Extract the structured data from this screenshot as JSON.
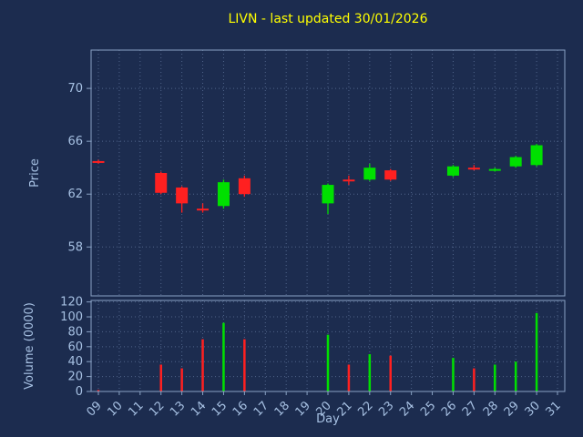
{
  "title": "LIVN - last updated 30/01/2026",
  "colors": {
    "background": "#1c2c4f",
    "title": "#ffff00",
    "axis_text": "#a6c0e2",
    "grid": "#50648a",
    "spine": "#8aa2c4",
    "up": "#00e000",
    "down": "#ff2020"
  },
  "chart_data": [
    {
      "type": "candlestick",
      "title": "LIVN - last updated 30/01/2026",
      "ylabel": "Price",
      "xlabel": "Day",
      "x_tick_labels": [
        "09",
        "10",
        "11",
        "12",
        "13",
        "14",
        "15",
        "16",
        "17",
        "18",
        "19",
        "20",
        "21",
        "22",
        "23",
        "24",
        "25",
        "26",
        "27",
        "28",
        "29",
        "30",
        "31"
      ],
      "y_ticks": [
        58,
        62,
        66,
        70
      ],
      "ylim": [
        54.3,
        72.9
      ],
      "grid": true,
      "candles": [
        {
          "day": "09",
          "open": 64.5,
          "high": 64.6,
          "low": 64.3,
          "close": 64.4
        },
        {
          "day": "12",
          "open": 63.6,
          "high": 63.7,
          "low": 62.0,
          "close": 62.1
        },
        {
          "day": "13",
          "open": 62.5,
          "high": 62.6,
          "low": 60.6,
          "close": 61.3
        },
        {
          "day": "14",
          "open": 60.9,
          "high": 61.3,
          "low": 60.6,
          "close": 60.8
        },
        {
          "day": "15",
          "open": 61.1,
          "high": 63.1,
          "low": 60.9,
          "close": 62.9
        },
        {
          "day": "16",
          "open": 63.2,
          "high": 63.4,
          "low": 61.8,
          "close": 62.0
        },
        {
          "day": "20",
          "open": 61.3,
          "high": 62.8,
          "low": 60.5,
          "close": 62.7
        },
        {
          "day": "21",
          "open": 63.1,
          "high": 63.4,
          "low": 62.7,
          "close": 63.0
        },
        {
          "day": "22",
          "open": 63.1,
          "high": 64.3,
          "low": 63.0,
          "close": 64.0
        },
        {
          "day": "23",
          "open": 63.8,
          "high": 63.9,
          "low": 63.0,
          "close": 63.1
        },
        {
          "day": "26",
          "open": 63.4,
          "high": 64.2,
          "low": 63.3,
          "close": 64.1
        },
        {
          "day": "27",
          "open": 64.0,
          "high": 64.2,
          "low": 63.8,
          "close": 63.9
        },
        {
          "day": "28",
          "open": 63.8,
          "high": 64.0,
          "low": 63.7,
          "close": 63.9
        },
        {
          "day": "29",
          "open": 64.1,
          "high": 64.9,
          "low": 64.0,
          "close": 64.8
        },
        {
          "day": "30",
          "open": 64.2,
          "high": 65.8,
          "low": 64.1,
          "close": 65.7
        }
      ]
    },
    {
      "type": "bar",
      "ylabel": "Volume (0000)",
      "y_ticks": [
        0,
        20,
        40,
        60,
        80,
        100,
        120
      ],
      "ylim": [
        0,
        122
      ],
      "grid": true,
      "bars": [
        {
          "day": "09",
          "value": 2,
          "direction": "down"
        },
        {
          "day": "12",
          "value": 36,
          "direction": "down"
        },
        {
          "day": "13",
          "value": 31,
          "direction": "down"
        },
        {
          "day": "14",
          "value": 70,
          "direction": "down"
        },
        {
          "day": "15",
          "value": 92,
          "direction": "up"
        },
        {
          "day": "16",
          "value": 70,
          "direction": "down"
        },
        {
          "day": "20",
          "value": 76,
          "direction": "up"
        },
        {
          "day": "21",
          "value": 36,
          "direction": "down"
        },
        {
          "day": "22",
          "value": 50,
          "direction": "up"
        },
        {
          "day": "23",
          "value": 48,
          "direction": "down"
        },
        {
          "day": "26",
          "value": 45,
          "direction": "up"
        },
        {
          "day": "27",
          "value": 31,
          "direction": "down"
        },
        {
          "day": "28",
          "value": 36,
          "direction": "up"
        },
        {
          "day": "29",
          "value": 40,
          "direction": "up"
        },
        {
          "day": "30",
          "value": 105,
          "direction": "up"
        }
      ]
    }
  ]
}
